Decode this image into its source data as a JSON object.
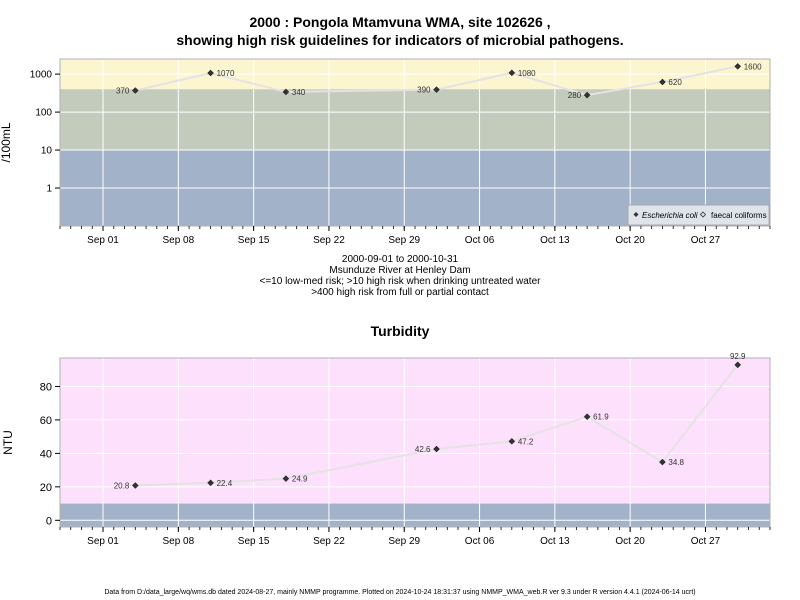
{
  "chart1": {
    "title_line1": "2000 : Pongola Mtamvuna WMA, site 102626 ,",
    "title_line2": "showing high risk guidelines for indicators of microbial pathogens.",
    "ylabel": "/100mL",
    "subtitle_lines": [
      "2000-09-01 to 2000-10-31",
      "Msunduze River at Henley Dam",
      "<=10 low-med risk; >10 high risk when drinking untreated water",
      ">400 high risk from full or partial contact"
    ],
    "legend": {
      "series1": "Escherichia coli",
      "series2": "faecal coliforms"
    }
  },
  "chart2": {
    "title": "Turbidity",
    "ylabel": "NTU"
  },
  "footer": "Data from D:/data_large/wq/wms.db dated 2024-08-27, mainly NMMP programme. Plotted on 2024-10-24 18:31:37 using NMMP_WMA_web.R ver 9.3 under R version 4.4.1 (2024-06-14 ucrt)",
  "colors": {
    "band_yellow": "#fbf6cf",
    "band_green": "#c3cbbd",
    "band_blue": "#a2b2c9",
    "band_pink": "#fde0fc",
    "line": "#e3e3e3",
    "point": "#333333"
  },
  "chart_data": [
    {
      "type": "line",
      "title": "2000 : Pongola Mtamvuna WMA, site 102626 , showing high risk guidelines for indicators of microbial pathogens.",
      "ylabel": "/100mL",
      "yscale": "log",
      "ylim": [
        0.1,
        2500
      ],
      "yticks": [
        1,
        10,
        100,
        1000
      ],
      "ytick_labels": [
        "1",
        "10",
        "100",
        "1000"
      ],
      "xlim": [
        "2000-08-28",
        "2000-11-02"
      ],
      "xticks": [
        "2000-09-01",
        "2000-09-08",
        "2000-09-15",
        "2000-09-22",
        "2000-09-29",
        "2000-10-06",
        "2000-10-13",
        "2000-10-20",
        "2000-10-27"
      ],
      "xtick_labels": [
        "Sep 01",
        "Sep 08",
        "Sep 15",
        "Sep 22",
        "Sep 29",
        "Oct 06",
        "Oct 13",
        "Oct 20",
        "Oct 27"
      ],
      "thresholds": [
        10,
        400
      ],
      "grid": true,
      "legend_position": "bottom-right",
      "series": [
        {
          "name": "Escherichia coli",
          "x": [
            "2000-09-04",
            "2000-09-11",
            "2000-09-18",
            "2000-10-02",
            "2000-10-09",
            "2000-10-16",
            "2000-10-23",
            "2000-10-30"
          ],
          "values": [
            370,
            1070,
            340,
            390,
            1080,
            280,
            620,
            1600
          ],
          "labels": [
            "370",
            "1070",
            "340",
            "390",
            "1080",
            "280",
            "620",
            "1600"
          ]
        }
      ]
    },
    {
      "type": "line",
      "title": "Turbidity",
      "ylabel": "NTU",
      "ylim": [
        -4,
        97
      ],
      "yticks": [
        0,
        20,
        40,
        60,
        80
      ],
      "ytick_labels": [
        "0",
        "20",
        "40",
        "60",
        "80"
      ],
      "xlim": [
        "2000-08-28",
        "2000-11-02"
      ],
      "xticks": [
        "2000-09-01",
        "2000-09-08",
        "2000-09-15",
        "2000-09-22",
        "2000-09-29",
        "2000-10-06",
        "2000-10-13",
        "2000-10-20",
        "2000-10-27"
      ],
      "xtick_labels": [
        "Sep 01",
        "Sep 08",
        "Sep 15",
        "Sep 22",
        "Sep 29",
        "Oct 06",
        "Oct 13",
        "Oct 20",
        "Oct 27"
      ],
      "threshold": 10,
      "grid": true,
      "series": [
        {
          "x": [
            "2000-09-04",
            "2000-09-11",
            "2000-09-18",
            "2000-10-02",
            "2000-10-09",
            "2000-10-16",
            "2000-10-23",
            "2000-10-30"
          ],
          "values": [
            20.8,
            22.4,
            24.9,
            42.6,
            47.2,
            61.9,
            34.8,
            92.9
          ],
          "labels": [
            "20.8",
            "22.4",
            "24.9",
            "42.6",
            "47.2",
            "61.9",
            "34.8",
            "92.9"
          ]
        }
      ]
    }
  ]
}
